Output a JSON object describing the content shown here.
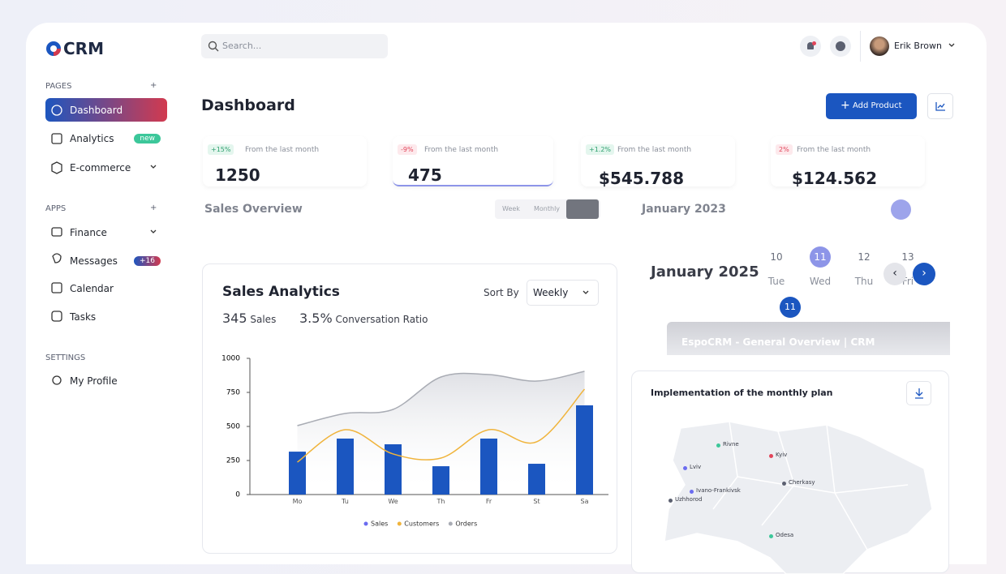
{
  "logo": "CRM",
  "search_placeholder": "Search...",
  "user": "Erik Brown",
  "sidebar": {
    "sections": [
      {
        "title": "PAGES",
        "items": [
          {
            "label": "Dashboard"
          },
          {
            "label": "Analytics",
            "badge": "new"
          },
          {
            "label": "E-commerce"
          }
        ]
      },
      {
        "title": "APPS",
        "items": [
          {
            "label": "Finance"
          },
          {
            "label": "Messages",
            "badge": "+16"
          },
          {
            "label": "Calendar"
          },
          {
            "label": "Tasks"
          }
        ]
      },
      {
        "title": "SETTINGS",
        "items": [
          {
            "label": "My Profile"
          }
        ]
      }
    ]
  },
  "header": {
    "title": "Dashboard",
    "button": "Add Product"
  },
  "stats": [
    {
      "change": "+15%",
      "note": "From the last month",
      "value": 1250
    },
    {
      "change": "-9%",
      "note": "From the last month",
      "value": 475
    },
    {
      "change": "+1.2%",
      "note": "From the last month",
      "value": "$545.788"
    },
    {
      "change": "2%",
      "note": "From the last month",
      "value": "$124.562"
    }
  ],
  "overlay": {
    "sales_overview": "Sales Overview",
    "tabs": [
      "Week",
      "Monthly"
    ],
    "calendar_old": "January 2023",
    "calendar": "January 2025",
    "days": [
      {
        "num": "10",
        "name": "Tue"
      },
      {
        "num": "11",
        "name": "Wed"
      },
      {
        "num": "12",
        "name": "Thu"
      },
      {
        "num": "13",
        "name": "Fri"
      }
    ],
    "selected": "11",
    "video_title": "EspoCRM - General Overview | CRM"
  },
  "chart_data": {
    "type": "bar",
    "title": "Sales Analytics",
    "sort_label": "Sort By",
    "sort_value": "Weekly",
    "kpis": [
      {
        "value": 345,
        "label": "Sales"
      },
      {
        "value": "3.5%",
        "label": "Conversation Ratio"
      }
    ],
    "categories": [
      "Mo",
      "Tu",
      "We",
      "Th",
      "Fr",
      "St",
      "Sa"
    ],
    "series": [
      {
        "name": "Sales",
        "type": "bar",
        "color": "#1b56c0",
        "legend_color": "#6b6cf0",
        "values": [
          315,
          411,
          369,
          208,
          411,
          226,
          655
        ]
      },
      {
        "name": "Customers",
        "type": "line",
        "color": "#f0b43c",
        "values": [
          238,
          476,
          298,
          268,
          476,
          387,
          774
        ]
      },
      {
        "name": "Orders",
        "type": "area",
        "color": "#a9acb4",
        "values": [
          506,
          595,
          625,
          863,
          881,
          833,
          905
        ]
      }
    ],
    "ylim": [
      0,
      1000
    ],
    "yticks": [
      0,
      250,
      500,
      750,
      1000
    ]
  },
  "map": {
    "title": "Implementation of the monthly plan",
    "cities": [
      "Rivne",
      "Kyiv",
      "Lviv",
      "Cherkasy",
      "Ivano-Frankivsk",
      "Uzhhorod",
      "Odesa"
    ]
  }
}
